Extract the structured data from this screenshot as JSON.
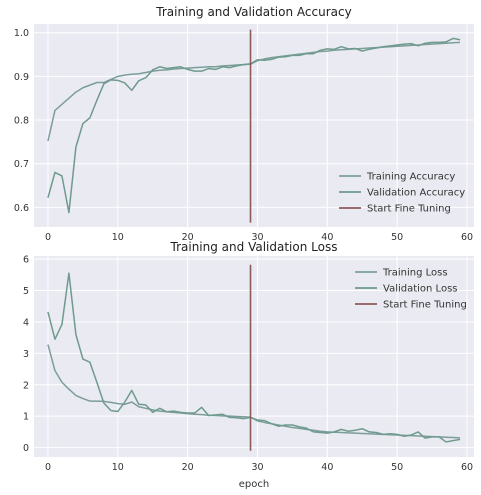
{
  "colors": {
    "training": "#7c9e9a",
    "validation": "#6f9a8e",
    "fine_tuning": "#8b5a5a",
    "background": "#eaeaf2",
    "grid": "#ffffff"
  },
  "chart_data": [
    {
      "type": "line",
      "title": "Training and Validation Accuracy",
      "xlabel": "",
      "ylabel": "",
      "xlim": [
        -2,
        61
      ],
      "ylim": [
        0.555,
        1.02
      ],
      "xticks": [
        0,
        10,
        20,
        30,
        40,
        50,
        60
      ],
      "yticks": [
        0.6,
        0.7,
        0.8,
        0.9,
        1.0
      ],
      "ytick_labels": [
        "0.6",
        "0.7",
        "0.8",
        "0.9",
        "1.0"
      ],
      "grid": true,
      "legend_position": "lower-right",
      "series": [
        {
          "name": "Training Accuracy",
          "color_key": "training",
          "x": [
            0,
            1,
            2,
            3,
            4,
            5,
            6,
            7,
            8,
            9,
            10,
            11,
            12,
            13,
            14,
            15,
            16,
            17,
            18,
            19,
            20,
            21,
            22,
            23,
            24,
            25,
            26,
            27,
            28,
            29,
            30,
            31,
            32,
            33,
            34,
            35,
            36,
            37,
            38,
            39,
            40,
            41,
            42,
            43,
            44,
            45,
            46,
            47,
            48,
            49,
            50,
            51,
            52,
            53,
            54,
            55,
            56,
            57,
            58,
            59
          ],
          "y": [
            0.752,
            0.822,
            0.836,
            0.85,
            0.864,
            0.874,
            0.88,
            0.886,
            0.886,
            0.893,
            0.9,
            0.903,
            0.905,
            0.906,
            0.909,
            0.912,
            0.914,
            0.915,
            0.917,
            0.918,
            0.919,
            0.92,
            0.921,
            0.922,
            0.922,
            0.924,
            0.925,
            0.926,
            0.927,
            0.928,
            0.936,
            0.94,
            0.943,
            0.945,
            0.947,
            0.949,
            0.951,
            0.953,
            0.955,
            0.957,
            0.958,
            0.96,
            0.961,
            0.962,
            0.963,
            0.964,
            0.965,
            0.966,
            0.967,
            0.968,
            0.969,
            0.97,
            0.971,
            0.972,
            0.973,
            0.974,
            0.975,
            0.976,
            0.977,
            0.978
          ]
        },
        {
          "name": "Validation Accuracy",
          "color_key": "validation",
          "x": [
            0,
            1,
            2,
            3,
            4,
            5,
            6,
            7,
            8,
            9,
            10,
            11,
            12,
            13,
            14,
            15,
            16,
            17,
            18,
            19,
            20,
            21,
            22,
            23,
            24,
            25,
            26,
            27,
            28,
            29,
            30,
            31,
            32,
            33,
            34,
            35,
            36,
            37,
            38,
            39,
            40,
            41,
            42,
            43,
            44,
            45,
            46,
            47,
            48,
            49,
            50,
            51,
            52,
            53,
            54,
            55,
            56,
            57,
            58,
            59
          ],
          "y": [
            0.622,
            0.68,
            0.672,
            0.588,
            0.738,
            0.792,
            0.805,
            0.845,
            0.883,
            0.892,
            0.891,
            0.885,
            0.868,
            0.89,
            0.897,
            0.915,
            0.922,
            0.918,
            0.92,
            0.922,
            0.916,
            0.912,
            0.912,
            0.918,
            0.916,
            0.922,
            0.92,
            0.924,
            0.927,
            0.929,
            0.938,
            0.937,
            0.939,
            0.944,
            0.945,
            0.948,
            0.948,
            0.952,
            0.952,
            0.96,
            0.963,
            0.962,
            0.968,
            0.963,
            0.964,
            0.958,
            0.962,
            0.965,
            0.968,
            0.97,
            0.972,
            0.974,
            0.975,
            0.97,
            0.976,
            0.978,
            0.978,
            0.979,
            0.987,
            0.984
          ]
        },
        {
          "name": "Start Fine Tuning",
          "color_key": "fine_tuning",
          "x": [
            29,
            29
          ],
          "y": [
            0.565,
            1.007
          ]
        }
      ]
    },
    {
      "type": "line",
      "title": "Training and Validation Loss",
      "xlabel": "epoch",
      "ylabel": "",
      "xlim": [
        -2,
        61
      ],
      "ylim": [
        -0.3,
        6.1
      ],
      "xticks": [
        0,
        10,
        20,
        30,
        40,
        50,
        60
      ],
      "yticks": [
        0,
        1,
        2,
        3,
        4,
        5,
        6
      ],
      "ytick_labels": [
        "0",
        "1",
        "2",
        "3",
        "4",
        "5",
        "6"
      ],
      "grid": true,
      "legend_position": "upper-right",
      "series": [
        {
          "name": "Training Loss",
          "color_key": "training",
          "x": [
            0,
            1,
            2,
            3,
            4,
            5,
            6,
            7,
            8,
            9,
            10,
            11,
            12,
            13,
            14,
            15,
            16,
            17,
            18,
            19,
            20,
            21,
            22,
            23,
            24,
            25,
            26,
            27,
            28,
            29,
            30,
            31,
            32,
            33,
            34,
            35,
            36,
            37,
            38,
            39,
            40,
            41,
            42,
            43,
            44,
            45,
            46,
            47,
            48,
            49,
            50,
            51,
            52,
            53,
            54,
            55,
            56,
            57,
            58,
            59
          ],
          "y": [
            3.28,
            2.45,
            2.08,
            1.86,
            1.66,
            1.56,
            1.48,
            1.48,
            1.47,
            1.44,
            1.4,
            1.38,
            1.45,
            1.3,
            1.25,
            1.2,
            1.16,
            1.14,
            1.12,
            1.1,
            1.08,
            1.06,
            1.05,
            1.03,
            1.02,
            1.01,
            1.0,
            0.99,
            0.98,
            0.97,
            0.85,
            0.8,
            0.76,
            0.72,
            0.68,
            0.64,
            0.61,
            0.58,
            0.55,
            0.52,
            0.5,
            0.49,
            0.48,
            0.47,
            0.46,
            0.45,
            0.44,
            0.43,
            0.42,
            0.41,
            0.4,
            0.39,
            0.38,
            0.37,
            0.36,
            0.35,
            0.34,
            0.33,
            0.32,
            0.31
          ]
        },
        {
          "name": "Validation Loss",
          "color_key": "validation",
          "x": [
            0,
            1,
            2,
            3,
            4,
            5,
            6,
            7,
            8,
            9,
            10,
            11,
            12,
            13,
            14,
            15,
            16,
            17,
            18,
            19,
            20,
            21,
            22,
            23,
            24,
            25,
            26,
            27,
            28,
            29,
            30,
            31,
            32,
            33,
            34,
            35,
            36,
            37,
            38,
            39,
            40,
            41,
            42,
            43,
            44,
            45,
            46,
            47,
            48,
            49,
            50,
            51,
            52,
            53,
            54,
            55,
            56,
            57,
            58,
            59
          ],
          "y": [
            4.32,
            3.45,
            3.92,
            5.55,
            3.6,
            2.82,
            2.72,
            2.08,
            1.42,
            1.18,
            1.15,
            1.45,
            1.82,
            1.38,
            1.36,
            1.12,
            1.25,
            1.14,
            1.16,
            1.12,
            1.1,
            1.1,
            1.28,
            1.02,
            1.04,
            1.06,
            0.96,
            0.95,
            0.92,
            0.96,
            0.88,
            0.86,
            0.76,
            0.68,
            0.72,
            0.72,
            0.66,
            0.62,
            0.5,
            0.48,
            0.46,
            0.5,
            0.58,
            0.52,
            0.55,
            0.6,
            0.5,
            0.48,
            0.42,
            0.44,
            0.42,
            0.36,
            0.4,
            0.5,
            0.3,
            0.34,
            0.34,
            0.18,
            0.22,
            0.26
          ]
        },
        {
          "name": "Start Fine Tuning",
          "color_key": "fine_tuning",
          "x": [
            29,
            29
          ],
          "y": [
            -0.1,
            5.82
          ]
        }
      ]
    }
  ]
}
